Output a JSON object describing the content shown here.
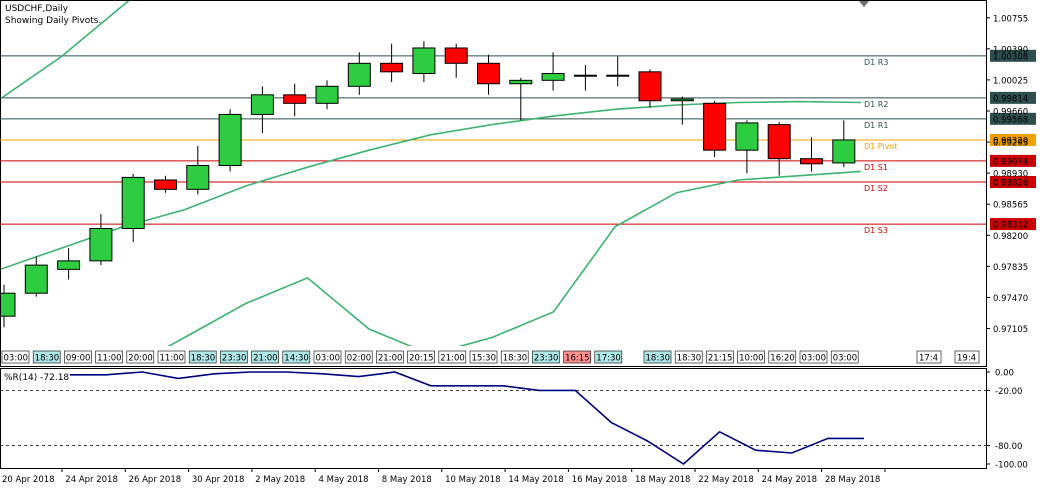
{
  "header": {
    "symbol": "USDCHF,Daily",
    "subtitle": "Showing Daily Pivots."
  },
  "colors": {
    "bull": "#2ecc40",
    "bear": "#ff0000",
    "band": "#3cb371",
    "pivot": "#f0a000",
    "resistance": "#2f4f4f",
    "support": "#cc0000",
    "indicator": "#000080",
    "grid": "#000000"
  },
  "chart_data": [
    {
      "type": "candlestick",
      "title": "USDCHF,Daily",
      "subtitle": "Showing Daily Pivots.",
      "ylim": [
        0.969,
        1.0094
      ],
      "y_ticks": [
        "1.00755",
        "1.00390",
        "1.00025",
        "0.99660",
        "0.99295",
        "0.98930",
        "0.98565",
        "0.98200",
        "0.97835",
        "0.97470",
        "0.97105"
      ],
      "last_price": "0.99320",
      "candles": [
        {
          "o": 0.9725,
          "h": 0.9762,
          "l": 0.9712,
          "c": 0.9752
        },
        {
          "o": 0.9752,
          "h": 0.9795,
          "l": 0.9748,
          "c": 0.9785
        },
        {
          "o": 0.978,
          "h": 0.9805,
          "l": 0.9768,
          "c": 0.979
        },
        {
          "o": 0.979,
          "h": 0.9845,
          "l": 0.9785,
          "c": 0.9828
        },
        {
          "o": 0.9828,
          "h": 0.9892,
          "l": 0.9812,
          "c": 0.9888
        },
        {
          "o": 0.9885,
          "h": 0.989,
          "l": 0.987,
          "c": 0.9874
        },
        {
          "o": 0.9874,
          "h": 0.9925,
          "l": 0.9868,
          "c": 0.9902
        },
        {
          "o": 0.9902,
          "h": 0.9968,
          "l": 0.9895,
          "c": 0.9962
        },
        {
          "o": 0.9962,
          "h": 0.9995,
          "l": 0.994,
          "c": 0.9985
        },
        {
          "o": 0.9985,
          "h": 0.9998,
          "l": 0.996,
          "c": 0.9975
        },
        {
          "o": 0.9975,
          "h": 1.0002,
          "l": 0.9968,
          "c": 0.9995
        },
        {
          "o": 0.9995,
          "h": 1.0035,
          "l": 0.9985,
          "c": 1.0022
        },
        {
          "o": 1.0022,
          "h": 1.0045,
          "l": 1.0,
          "c": 1.0012
        },
        {
          "o": 1.001,
          "h": 1.0048,
          "l": 1.0,
          "c": 1.004
        },
        {
          "o": 1.004,
          "h": 1.0045,
          "l": 1.0005,
          "c": 1.0022
        },
        {
          "o": 1.0022,
          "h": 1.0032,
          "l": 0.9985,
          "c": 0.9998
        },
        {
          "o": 0.9998,
          "h": 1.0005,
          "l": 0.9955,
          "c": 1.0002
        },
        {
          "o": 1.0002,
          "h": 1.0035,
          "l": 0.999,
          "c": 1.001
        },
        {
          "o": 1.0008,
          "h": 1.002,
          "l": 0.999,
          "c": 1.0008
        },
        {
          "o": 1.0008,
          "h": 1.003,
          "l": 0.9995,
          "c": 1.0008
        },
        {
          "o": 1.0012,
          "h": 1.0015,
          "l": 0.997,
          "c": 0.9978
        },
        {
          "o": 0.9978,
          "h": 0.9983,
          "l": 0.995,
          "c": 0.998
        },
        {
          "o": 0.9975,
          "h": 0.9978,
          "l": 0.9912,
          "c": 0.992
        },
        {
          "o": 0.992,
          "h": 0.9955,
          "l": 0.9893,
          "c": 0.9952
        },
        {
          "o": 0.995,
          "h": 0.9953,
          "l": 0.989,
          "c": 0.991
        },
        {
          "o": 0.991,
          "h": 0.9935,
          "l": 0.9895,
          "c": 0.9904
        },
        {
          "o": 0.9905,
          "h": 0.9955,
          "l": 0.99,
          "c": 0.9932
        }
      ],
      "bands": {
        "upper": [
          0.998,
          1.003,
          1.009,
          1.015,
          1.023,
          1.028,
          1.026,
          1.025,
          1.024,
          1.023,
          1.021,
          1.019,
          1.017,
          1.014,
          1.013
        ],
        "middle": [
          0.978,
          0.9805,
          0.983,
          0.985,
          0.9878,
          0.99,
          0.992,
          0.9938,
          0.995,
          0.996,
          0.9968,
          0.9973,
          0.9976,
          0.9977,
          0.9976
        ],
        "lower": [
          0.958,
          0.962,
          0.966,
          0.97,
          0.974,
          0.977,
          0.971,
          0.968,
          0.97,
          0.973,
          0.983,
          0.987,
          0.9885,
          0.989,
          0.9895
        ]
      },
      "pivots": [
        {
          "label": "D1 R3",
          "value": 1.00308,
          "price": "1.00308",
          "kind": "resistance"
        },
        {
          "label": "D1 R2",
          "value": 0.99814,
          "price": "0.99814",
          "kind": "resistance"
        },
        {
          "label": "D1 R1",
          "value": 0.99568,
          "price": "0.99568",
          "kind": "resistance"
        },
        {
          "label": "D1 Pivot",
          "value": 0.9932,
          "price": "0.99320",
          "kind": "pivot"
        },
        {
          "label": "D1 S1",
          "value": 0.99074,
          "price": "0.99074",
          "kind": "support"
        },
        {
          "label": "D1 S2",
          "value": 0.98826,
          "price": "0.98826",
          "kind": "support"
        },
        {
          "label": "D1 S3",
          "value": 0.98332,
          "price": "0.98332",
          "kind": "support"
        }
      ],
      "time_labels": [
        {
          "text": "03:00",
          "style": "plain"
        },
        {
          "text": "18:30",
          "style": "cyan"
        },
        {
          "text": "09:00",
          "style": "plain"
        },
        {
          "text": "11:00",
          "style": "plain"
        },
        {
          "text": "20:00",
          "style": "plain"
        },
        {
          "text": "11:00",
          "style": "plain"
        },
        {
          "text": "18:30",
          "style": "cyan"
        },
        {
          "text": "23:30",
          "style": "cyan"
        },
        {
          "text": "21:00",
          "style": "cyan"
        },
        {
          "text": "14:30",
          "style": "cyan"
        },
        {
          "text": "03:00",
          "style": "plain"
        },
        {
          "text": "02:00",
          "style": "plain"
        },
        {
          "text": "21:00",
          "style": "plain"
        },
        {
          "text": "20:15",
          "style": "plain"
        },
        {
          "text": "21:00",
          "style": "plain"
        },
        {
          "text": "15:30",
          "style": "plain"
        },
        {
          "text": "18:30",
          "style": "plain"
        },
        {
          "text": "23:30",
          "style": "cyan"
        },
        {
          "text": "16:15",
          "style": "red"
        },
        {
          "text": "17:30",
          "style": "cyan"
        },
        {
          "text": "18:30",
          "style": "cyan"
        },
        {
          "text": "18:30",
          "style": "plain"
        },
        {
          "text": "21:15",
          "style": "plain"
        },
        {
          "text": "10:00",
          "style": "plain"
        },
        {
          "text": "16:20",
          "style": "plain"
        },
        {
          "text": "03:00",
          "style": "plain"
        },
        {
          "text": "03:00",
          "style": "plain"
        }
      ],
      "time_tail": [
        "17:4",
        "19:4"
      ]
    },
    {
      "type": "line",
      "title": "%R(14) -72.18",
      "ylim": [
        -100,
        0
      ],
      "y_ticks": [
        "0.00",
        "-20.00",
        "-80.00",
        "-100.00"
      ],
      "levels": [
        -20,
        -80
      ],
      "values": [
        -3,
        -3,
        0,
        -7,
        -2,
        0,
        0,
        -2,
        -5,
        0,
        -15,
        -15,
        -15,
        -20,
        -20,
        -55,
        -75,
        -100,
        -65,
        -85,
        -88,
        -72.18,
        -72.18
      ],
      "x_labels": [
        "20 Apr 2018",
        "24 Apr 2018",
        "26 Apr 2018",
        "30 Apr 2018",
        "2 May 2018",
        "4 May 2018",
        "8 May 2018",
        "10 May 2018",
        "14 May 2018",
        "16 May 2018",
        "18 May 2018",
        "22 May 2018",
        "24 May 2018",
        "28 May 2018"
      ]
    }
  ]
}
